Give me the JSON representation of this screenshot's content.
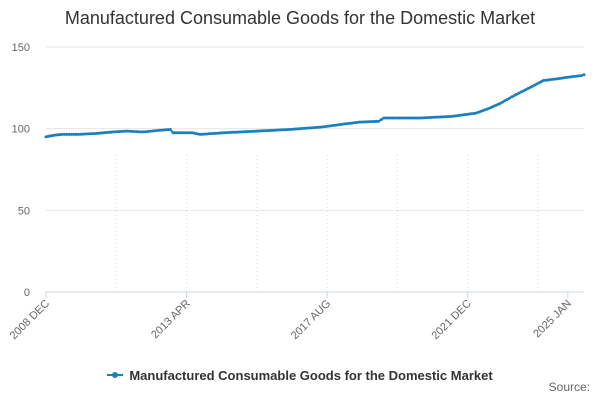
{
  "chart_data": {
    "type": "line",
    "title": "Manufactured Consumable Goods for the Domestic Market",
    "xlabel": "",
    "ylabel": "",
    "ylim": [
      0,
      150
    ],
    "yticks": [
      0,
      50,
      100,
      150
    ],
    "xlim": [
      "2008-12",
      "2025-01"
    ],
    "xticks": [
      {
        "date": "2008-12",
        "label": "2008 DEC"
      },
      {
        "date": "2013-04",
        "label": "2013 APR"
      },
      {
        "date": "2017-08",
        "label": "2017 AUG"
      },
      {
        "date": "2021-12",
        "label": "2021 DEC"
      },
      {
        "date": "2025-01",
        "label": "2025 JAN"
      }
    ],
    "grid": "horizontal",
    "legend_position": "bottom-center",
    "series": [
      {
        "name": "Manufactured Consumable Goods for the Domestic Market",
        "color": "#1a7fbf",
        "points": [
          [
            "2008-12",
            95
          ],
          [
            "2009-03",
            96
          ],
          [
            "2009-06",
            96.5
          ],
          [
            "2009-12",
            96.5
          ],
          [
            "2010-06",
            97
          ],
          [
            "2011-01",
            98
          ],
          [
            "2011-06",
            98.5
          ],
          [
            "2011-12",
            98
          ],
          [
            "2012-06",
            99
          ],
          [
            "2012-10",
            99.5
          ],
          [
            "2012-11",
            97.5
          ],
          [
            "2013-06",
            97.5
          ],
          [
            "2013-09",
            96.5
          ],
          [
            "2014-06",
            97.5
          ],
          [
            "2015-06",
            98.5
          ],
          [
            "2016-06",
            99.5
          ],
          [
            "2017-06",
            101
          ],
          [
            "2018-03",
            103
          ],
          [
            "2018-08",
            104
          ],
          [
            "2019-03",
            104.5
          ],
          [
            "2019-05",
            106.5
          ],
          [
            "2020-06",
            106.5
          ],
          [
            "2021-06",
            107.5
          ],
          [
            "2022-03",
            109.5
          ],
          [
            "2022-08",
            112.5
          ],
          [
            "2022-12",
            115.5
          ],
          [
            "2023-06",
            121
          ],
          [
            "2023-12",
            126
          ],
          [
            "2024-04",
            129.5
          ],
          [
            "2024-09",
            130.5
          ],
          [
            "2025-01",
            131.5
          ],
          [
            "2025-06",
            132.5
          ],
          [
            "2025-07",
            133
          ]
        ]
      }
    ]
  },
  "credits": "Source:"
}
